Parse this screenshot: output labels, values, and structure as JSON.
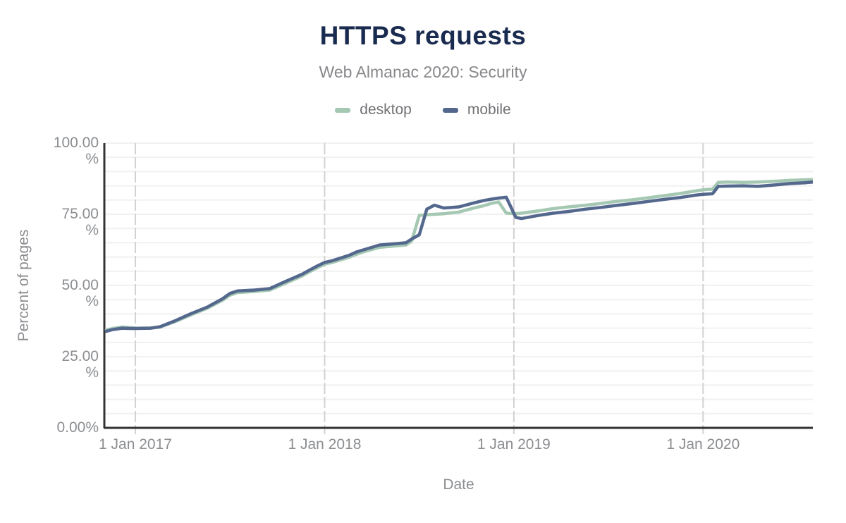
{
  "header": {
    "title": "HTTPS requests",
    "subtitle": "Web Almanac 2020: Security"
  },
  "legend": [
    {
      "label": "desktop",
      "color": "#a5c8b3"
    },
    {
      "label": "mobile",
      "color": "#54688e"
    }
  ],
  "colors": {
    "title": "#1a2b50",
    "subtitle": "#87888b",
    "axis_line": "#333333",
    "tick_label": "#8b8d90",
    "vertical_gridline": "#d2d2d2",
    "horizontal_gridline": "#f1f1f1",
    "desktop_line": "#a5c8b3",
    "mobile_line": "#54688e"
  },
  "chart_data": {
    "type": "line",
    "title": "HTTPS requests",
    "subtitle": "Web Almanac 2020: Security",
    "xlabel": "Date",
    "ylabel": "Percent of pages",
    "xlim": [
      2016.836,
      2020.58
    ],
    "ylim": [
      0,
      100
    ],
    "grid": {
      "y_minor_step": 5,
      "x_year_lines": [
        2017,
        2018,
        2019,
        2020
      ],
      "legend_position": "top"
    },
    "x_ticks": [
      {
        "v": 2017,
        "label": "1 Jan 2017"
      },
      {
        "v": 2018,
        "label": "1 Jan 2018"
      },
      {
        "v": 2019,
        "label": "1 Jan 2019"
      },
      {
        "v": 2020,
        "label": "1 Jan 2020"
      }
    ],
    "y_ticks": [
      {
        "v": 100,
        "lines": [
          "100.00",
          "%"
        ]
      },
      {
        "v": 75,
        "lines": [
          "75.00",
          "%"
        ]
      },
      {
        "v": 50,
        "lines": [
          "50.00",
          "%"
        ]
      },
      {
        "v": 25,
        "lines": [
          "25.00",
          "%"
        ]
      },
      {
        "v": 0,
        "lines": [
          "0.00%"
        ]
      }
    ],
    "x": [
      2016.84,
      2016.88,
      2016.93,
      2016.97,
      2017.0,
      2017.08,
      2017.13,
      2017.21,
      2017.29,
      2017.38,
      2017.46,
      2017.5,
      2017.54,
      2017.63,
      2017.71,
      2017.79,
      2017.88,
      2017.92,
      2017.96,
      2018.0,
      2018.04,
      2018.13,
      2018.17,
      2018.21,
      2018.29,
      2018.38,
      2018.43,
      2018.46,
      2018.5,
      2018.54,
      2018.58,
      2018.63,
      2018.71,
      2018.79,
      2018.84,
      2018.88,
      2018.92,
      2018.96,
      2019.01,
      2019.04,
      2019.13,
      2019.21,
      2019.29,
      2019.38,
      2019.46,
      2019.54,
      2019.63,
      2019.71,
      2019.79,
      2019.88,
      2019.96,
      2020.0,
      2020.05,
      2020.08,
      2020.13,
      2020.21,
      2020.29,
      2020.38,
      2020.46,
      2020.54,
      2020.58
    ],
    "series": [
      {
        "name": "desktop",
        "color": "#a5c8b3",
        "values": [
          34.2,
          34.9,
          35.4,
          35.2,
          35.0,
          35.1,
          35.4,
          37.3,
          39.6,
          42.0,
          44.8,
          46.6,
          47.5,
          47.9,
          48.4,
          50.7,
          53.3,
          54.8,
          56.2,
          57.5,
          58.1,
          59.9,
          61.0,
          61.9,
          63.4,
          63.9,
          64.2,
          65.6,
          74.6,
          74.8,
          75.0,
          75.2,
          75.8,
          77.2,
          78.0,
          78.8,
          79.3,
          75.4,
          75.2,
          75.4,
          76.2,
          77.0,
          77.6,
          78.2,
          78.8,
          79.5,
          80.1,
          80.8,
          81.5,
          82.3,
          83.2,
          83.6,
          83.8,
          86.2,
          86.3,
          86.2,
          86.3,
          86.6,
          86.9,
          87.1,
          87.2
        ]
      },
      {
        "name": "mobile",
        "color": "#54688e",
        "values": [
          33.8,
          34.5,
          35.0,
          34.9,
          34.9,
          35.0,
          35.5,
          37.6,
          40.0,
          42.4,
          45.3,
          47.2,
          48.1,
          48.4,
          48.9,
          51.3,
          53.9,
          55.4,
          56.8,
          58.1,
          58.7,
          60.6,
          61.8,
          62.6,
          64.2,
          64.7,
          65.0,
          66.3,
          67.8,
          76.8,
          78.2,
          77.2,
          77.6,
          79.0,
          79.8,
          80.3,
          80.7,
          81.0,
          73.9,
          73.5,
          74.6,
          75.4,
          76.0,
          76.8,
          77.4,
          78.1,
          78.8,
          79.5,
          80.2,
          80.9,
          81.7,
          82.0,
          82.2,
          84.8,
          84.9,
          85.0,
          84.8,
          85.3,
          85.8,
          86.1,
          86.3
        ]
      }
    ]
  }
}
